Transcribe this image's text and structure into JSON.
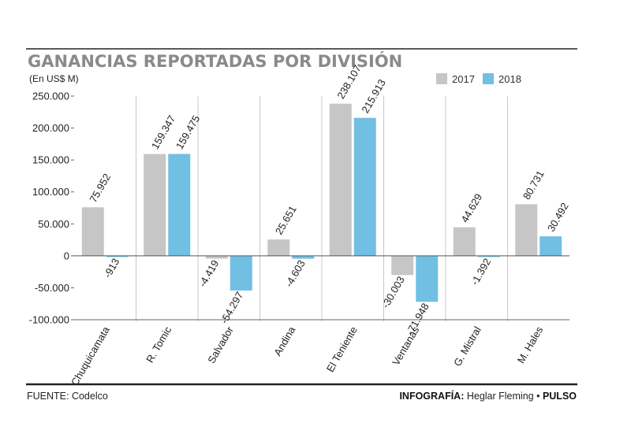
{
  "chart_data": {
    "type": "bar",
    "title": "GANANCIAS REPORTADAS POR DIVISIÓN",
    "unit": "(En US$ M)",
    "categories": [
      "Chuquicamata",
      "R. Tomic",
      "Salvador",
      "Andina",
      "El Teniente",
      "Ventanas",
      "G. Mistral",
      "M. Hales"
    ],
    "series": [
      {
        "name": "2017",
        "color": "#c6c6c6",
        "values": [
          75952,
          159347,
          -4419,
          25651,
          238107,
          -30003,
          44629,
          80731
        ],
        "labels": [
          "75.952",
          "159.347",
          "-4.419",
          "25.651",
          "238.107",
          "-30.003",
          "44.629",
          "80.731"
        ]
      },
      {
        "name": "2018",
        "color": "#72bfe4",
        "values": [
          -913,
          159475,
          -54297,
          -4603,
          215913,
          -71948,
          -1392,
          30492
        ],
        "labels": [
          "-913",
          "159.475",
          "-54.297",
          "-4.603",
          "215.913",
          "-71.948",
          "-1.392",
          "30.492"
        ]
      }
    ],
    "ylim": [
      -100000,
      250000
    ],
    "yticks": [
      250000,
      200000,
      150000,
      100000,
      50000,
      0,
      -50000,
      -100000
    ],
    "ytick_labels": [
      "250.000",
      "200.000",
      "150.000",
      "100.000",
      "50.000",
      "0",
      "-50.000",
      "-100.000"
    ],
    "grid": "vertical separators",
    "legend": "top-right"
  },
  "footer": {
    "source": "FUENTE: Codelco",
    "credit_prefix": "INFOGRAFÍA:",
    "credit_name": " Heglar Fleming • ",
    "credit_brand": "PULSO"
  }
}
